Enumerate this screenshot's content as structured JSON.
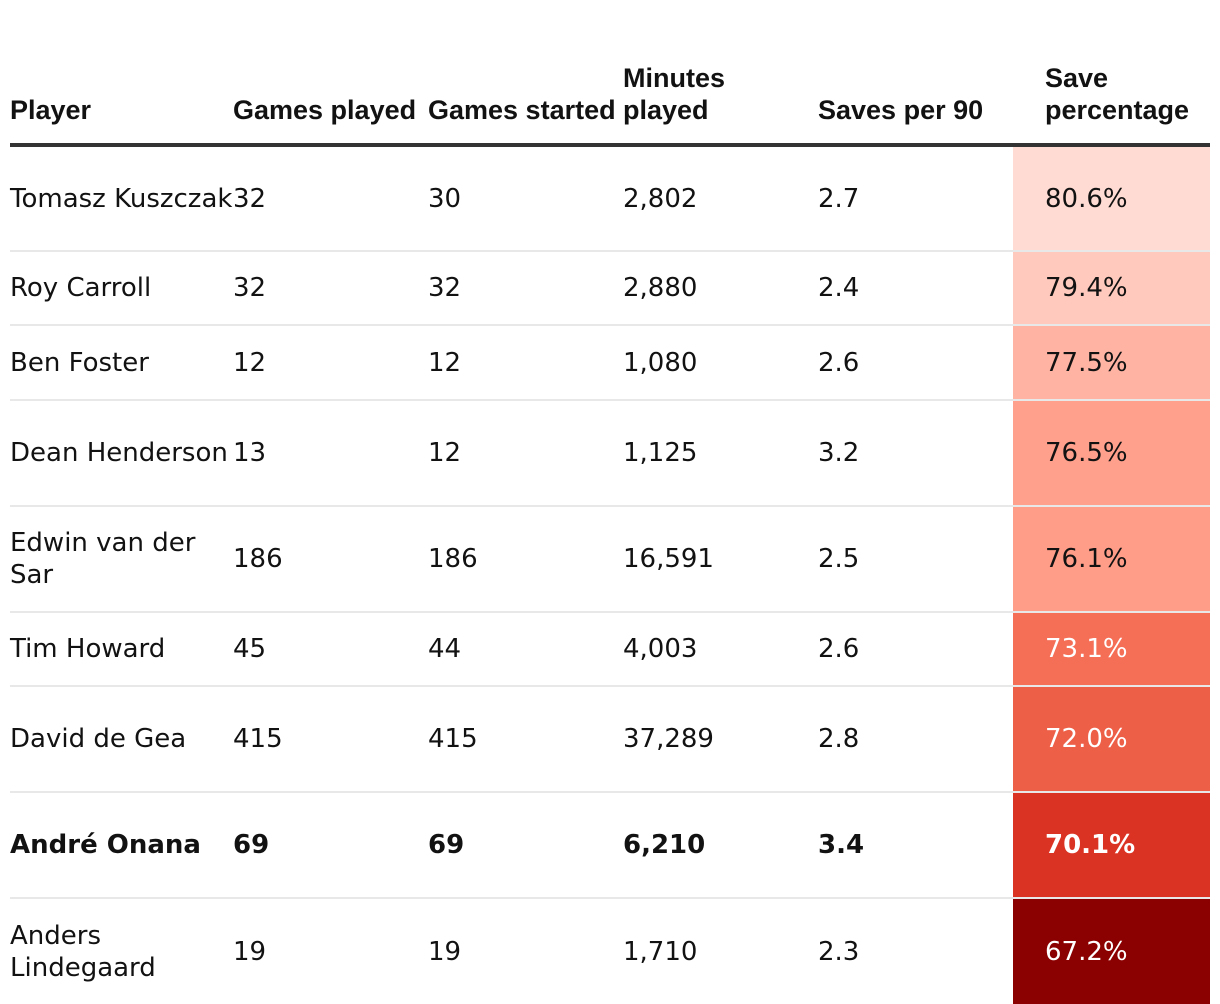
{
  "chart_data": {
    "type": "table",
    "columns": [
      "Player",
      "Games played",
      "Games started",
      "Minutes played",
      "Saves per 90",
      "Save percentage"
    ],
    "rows": [
      {
        "player": "Tomasz Kuszczak",
        "games_played": "32",
        "games_started": "30",
        "minutes_played": "2,802",
        "saves_per_90": "2.7",
        "save_percentage": "80.6%",
        "save_value": 80.6,
        "cell_color": "#ffdbd3",
        "text_color": "#121212",
        "highlight": false
      },
      {
        "player": "Roy Carroll",
        "games_played": "32",
        "games_started": "32",
        "minutes_played": "2,880",
        "saves_per_90": "2.4",
        "save_percentage": "79.4%",
        "save_value": 79.4,
        "cell_color": "#ffcabd",
        "text_color": "#121212",
        "highlight": false
      },
      {
        "player": "Ben Foster",
        "games_played": "12",
        "games_started": "12",
        "minutes_played": "1,080",
        "saves_per_90": "2.6",
        "save_percentage": "77.5%",
        "save_value": 77.5,
        "cell_color": "#ffb3a2",
        "text_color": "#121212",
        "highlight": false
      },
      {
        "player": "Dean Henderson",
        "games_played": "13",
        "games_started": "12",
        "minutes_played": "1,125",
        "saves_per_90": "3.2",
        "save_percentage": "76.5%",
        "save_value": 76.5,
        "cell_color": "#ffa08c",
        "text_color": "#121212",
        "highlight": false
      },
      {
        "player": "Edwin van der Sar",
        "games_played": "186",
        "games_started": "186",
        "minutes_played": "16,591",
        "saves_per_90": "2.5",
        "save_percentage": "76.1%",
        "save_value": 76.1,
        "cell_color": "#ff9d88",
        "text_color": "#121212",
        "highlight": false
      },
      {
        "player": "Tim Howard",
        "games_played": "45",
        "games_started": "44",
        "minutes_played": "4,003",
        "saves_per_90": "2.6",
        "save_percentage": "73.1%",
        "save_value": 73.1,
        "cell_color": "#f56e56",
        "text_color": "#ffffff",
        "highlight": false
      },
      {
        "player": "David de Gea",
        "games_played": "415",
        "games_started": "415",
        "minutes_played": "37,289",
        "saves_per_90": "2.8",
        "save_percentage": "72.0%",
        "save_value": 72.0,
        "cell_color": "#ee5f48",
        "text_color": "#ffffff",
        "highlight": false
      },
      {
        "player": "André Onana",
        "games_played": "69",
        "games_started": "69",
        "minutes_played": "6,210",
        "saves_per_90": "3.4",
        "save_percentage": "70.1%",
        "save_value": 70.1,
        "cell_color": "#db3323",
        "text_color": "#ffffff",
        "highlight": true
      },
      {
        "player": "Anders Lindegaard",
        "games_played": "19",
        "games_started": "19",
        "minutes_played": "1,710",
        "saves_per_90": "2.3",
        "save_percentage": "67.2%",
        "save_value": 67.2,
        "cell_color": "#8b0000",
        "text_color": "#ffffff",
        "highlight": false
      }
    ]
  },
  "table": {
    "headers": {
      "player": "Player",
      "games_played": "Games played",
      "games_started": "Games started",
      "minutes_played": "Minutes played",
      "saves_per_90": "Saves per 90",
      "save_percentage": "Save percentage"
    }
  }
}
